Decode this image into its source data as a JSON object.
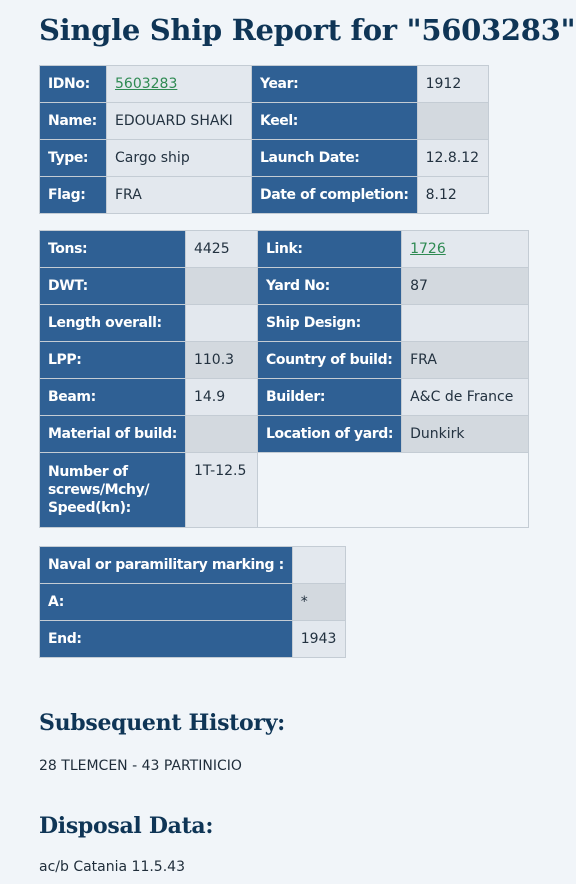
{
  "title": "Single Ship Report for \"5603283\"",
  "general": {
    "idno_label": "IDNo:",
    "idno_value": "5603283",
    "year_label": "Year:",
    "year_value": "1912",
    "name_label": "Name:",
    "name_value": "EDOUARD SHAKI",
    "keel_label": "Keel:",
    "keel_value": "",
    "type_label": "Type:",
    "type_value": "Cargo ship",
    "launch_label": "Launch Date:",
    "launch_value": "12.8.12",
    "flag_label": "Flag:",
    "flag_value": "FRA",
    "completion_label": "Date of completion:",
    "completion_value": "8.12"
  },
  "specs": {
    "tons_label": "Tons:",
    "tons_value": "4425",
    "link_label": "Link:",
    "link_value": "1726",
    "dwt_label": "DWT:",
    "dwt_value": "",
    "yard_label": "Yard No:",
    "yard_value": "87",
    "loa_label": "Length overall:",
    "loa_value": "",
    "design_label": "Ship Design:",
    "design_value": "",
    "lpp_label": "LPP:",
    "lpp_value": "110.3",
    "country_label": "Country of build:",
    "country_value": "FRA",
    "beam_label": "Beam:",
    "beam_value": "14.9",
    "builder_label": "Builder:",
    "builder_value": "A&C de France",
    "material_label": "Material of build:",
    "material_value": "",
    "location_label": "Location of yard:",
    "location_value": "Dunkirk",
    "screws_label": "Number of screws/Mchy/ Speed(kn):",
    "screws_value": "1T-12.5"
  },
  "naval": {
    "marking_label": "Naval or paramilitary marking :",
    "marking_value": "",
    "a_label": "A:",
    "a_value": "*",
    "end_label": "End:",
    "end_value": "1943"
  },
  "subsequent": {
    "heading": "Subsequent History:",
    "text": "28 TLEMCEN - 43 PARTINICIO"
  },
  "disposal": {
    "heading": "Disposal Data:",
    "text": "ac/b Catania 11.5.43"
  },
  "colors": {
    "heading": "#0f3556",
    "label_bg": "#2f6094",
    "value_bg": "#e3e8ee",
    "link": "#2e8a52"
  }
}
